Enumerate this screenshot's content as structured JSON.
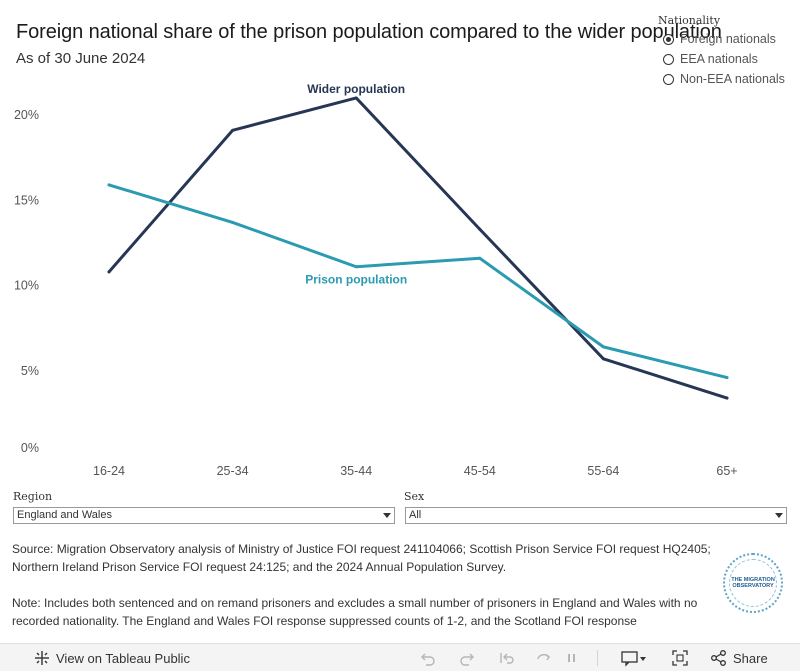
{
  "chart_data": {
    "type": "line",
    "title": "Foreign national share of the prison population compared to the wider population",
    "subtitle": "As of 30 June 2024",
    "categories": [
      "16-24",
      "25-34",
      "35-44",
      "45-54",
      "55-64",
      "65+"
    ],
    "series": [
      {
        "name": "Wider population",
        "values": [
          10.8,
          19.1,
          21.0,
          13.3,
          5.7,
          3.4
        ],
        "color": "#273654"
      },
      {
        "name": "Prison population",
        "values": [
          15.9,
          13.7,
          11.1,
          11.6,
          6.4,
          4.6
        ],
        "color": "#2a9bb0"
      }
    ],
    "ylim": [
      0,
      22
    ],
    "yticks": [
      0,
      5,
      10,
      15,
      20
    ],
    "ytick_labels": [
      "0%",
      "5%",
      "10%",
      "15%",
      "20%"
    ],
    "xlabel": "",
    "ylabel": "",
    "grid": false
  },
  "legend": {
    "title": "Nationality",
    "options": [
      "Foreign nationals",
      "EEA nationals",
      "Non-EEA nationals"
    ],
    "selected": 0
  },
  "filters": {
    "region": {
      "label": "Region",
      "value": "England and Wales"
    },
    "sex": {
      "label": "Sex",
      "value": "All"
    }
  },
  "source_text": "Source: Migration Observatory analysis of Ministry of Justice FOI request 241104066; Scottish Prison Service FOI request HQ2405; Northern Ireland Prison Service FOI request 24:125; and the 2024 Annual Population Survey.",
  "note_text": "Note: Includes both sentenced and on remand prisoners and excludes a small number of prisoners in England and Wales with no recorded nationality. The England and Wales FOI response suppressed counts of 1-2, and the Scotland FOI response",
  "logo_text": "THE MIGRATION OBSERVATORY",
  "toolbar": {
    "view_label": "View on Tableau Public",
    "share_label": "Share"
  }
}
